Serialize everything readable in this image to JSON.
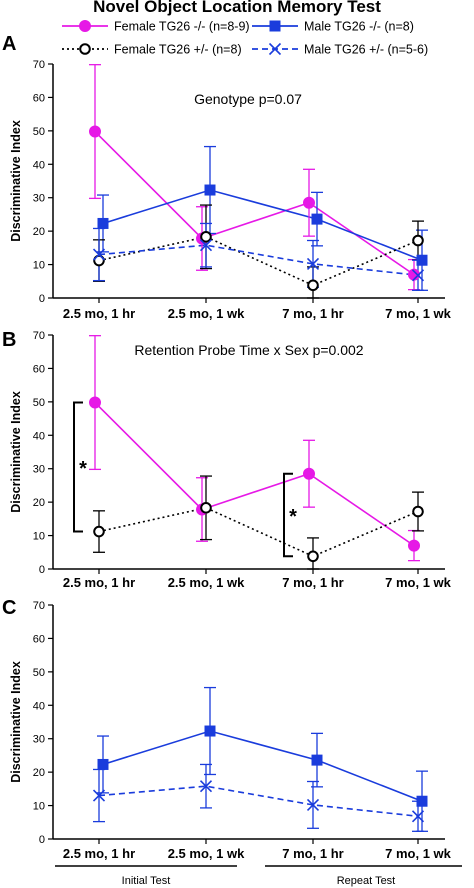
{
  "title": "Novel Object Location Memory Test",
  "legend": [
    {
      "key": "female_ko",
      "label": "Female TG26 -/- (n=8-9)"
    },
    {
      "key": "male_ko",
      "label": "Male TG26 -/- (n=8)"
    },
    {
      "key": "female_het",
      "label": "Female TG26 +/- (n=8)"
    },
    {
      "key": "male_het",
      "label": "Male TG26 +/- (n=5-6)"
    }
  ],
  "colors": {
    "female_ko": "#e619e6",
    "male_ko": "#1a3cdc",
    "female_het": "#000000",
    "male_het": "#1a3cdc"
  },
  "group_labels": {
    "initial": "Initial Test",
    "repeat": "Repeat Test"
  },
  "chart_data": [
    {
      "type": "line",
      "panel": "A",
      "ylabel": "Discriminative Index",
      "ylim": [
        0,
        70
      ],
      "yticks": [
        0,
        10,
        20,
        30,
        40,
        50,
        60,
        70
      ],
      "categories": [
        "2.5 mo, 1 hr",
        "2.5 mo, 1 wk",
        "7 mo, 1 hr",
        "7 mo, 1 wk"
      ],
      "annotation": "Genotype p=0.07",
      "series": [
        {
          "key": "female_ko",
          "name": "Female TG26 -/- (n=8-9)",
          "values": [
            49.8,
            17.8,
            28.5,
            7.0
          ],
          "err": [
            20,
            9.5,
            10,
            4.5
          ]
        },
        {
          "key": "male_ko",
          "name": "Male TG26 -/- (n=8)",
          "values": [
            22.3,
            32.3,
            23.6,
            11.3
          ],
          "err": [
            8.5,
            13,
            8,
            9
          ]
        },
        {
          "key": "female_het",
          "name": "Female TG26 +/- (n=8)",
          "values": [
            11.2,
            18.3,
            3.8,
            17.2
          ],
          "err": [
            6.2,
            9.5,
            5.5,
            5.8
          ]
        },
        {
          "key": "male_het",
          "name": "Male TG26 +/- (n=5-6)",
          "values": [
            13.0,
            15.8,
            10.2,
            6.8
          ],
          "err": [
            7.8,
            6.5,
            7,
            4.5
          ]
        }
      ]
    },
    {
      "type": "line",
      "panel": "B",
      "ylabel": "Discriminative Index",
      "ylim": [
        0,
        70
      ],
      "yticks": [
        0,
        10,
        20,
        30,
        40,
        50,
        60,
        70
      ],
      "categories": [
        "2.5 mo, 1 hr",
        "2.5 mo, 1 wk",
        "7 mo, 1 hr",
        "7 mo, 1 wk"
      ],
      "annotation": "Retention Probe Time x Sex p=0.002",
      "significance": [
        "*",
        "*"
      ],
      "series": [
        {
          "key": "female_ko",
          "name": "Female TG26 -/- (n=8-9)",
          "values": [
            49.8,
            17.8,
            28.5,
            7.0
          ],
          "err": [
            20,
            9.5,
            10,
            4.5
          ]
        },
        {
          "key": "female_het",
          "name": "Female TG26 +/- (n=8)",
          "values": [
            11.2,
            18.3,
            3.8,
            17.2
          ],
          "err": [
            6.2,
            9.5,
            5.5,
            5.8
          ]
        }
      ]
    },
    {
      "type": "line",
      "panel": "C",
      "ylabel": "Discriminative Index",
      "ylim": [
        0,
        70
      ],
      "yticks": [
        0,
        10,
        20,
        30,
        40,
        50,
        60,
        70
      ],
      "categories": [
        "2.5 mo, 1 hr",
        "2.5 mo, 1 wk",
        "7 mo, 1 hr",
        "7 mo, 1 wk"
      ],
      "annotation": "",
      "series": [
        {
          "key": "male_ko",
          "name": "Male TG26 -/- (n=8)",
          "values": [
            22.3,
            32.3,
            23.6,
            11.3
          ],
          "err": [
            8.5,
            13,
            8,
            9
          ]
        },
        {
          "key": "male_het",
          "name": "Male TG26 +/- (n=5-6)",
          "values": [
            13.0,
            15.8,
            10.2,
            6.8
          ],
          "err": [
            7.8,
            6.5,
            7,
            4.5
          ]
        }
      ]
    }
  ]
}
